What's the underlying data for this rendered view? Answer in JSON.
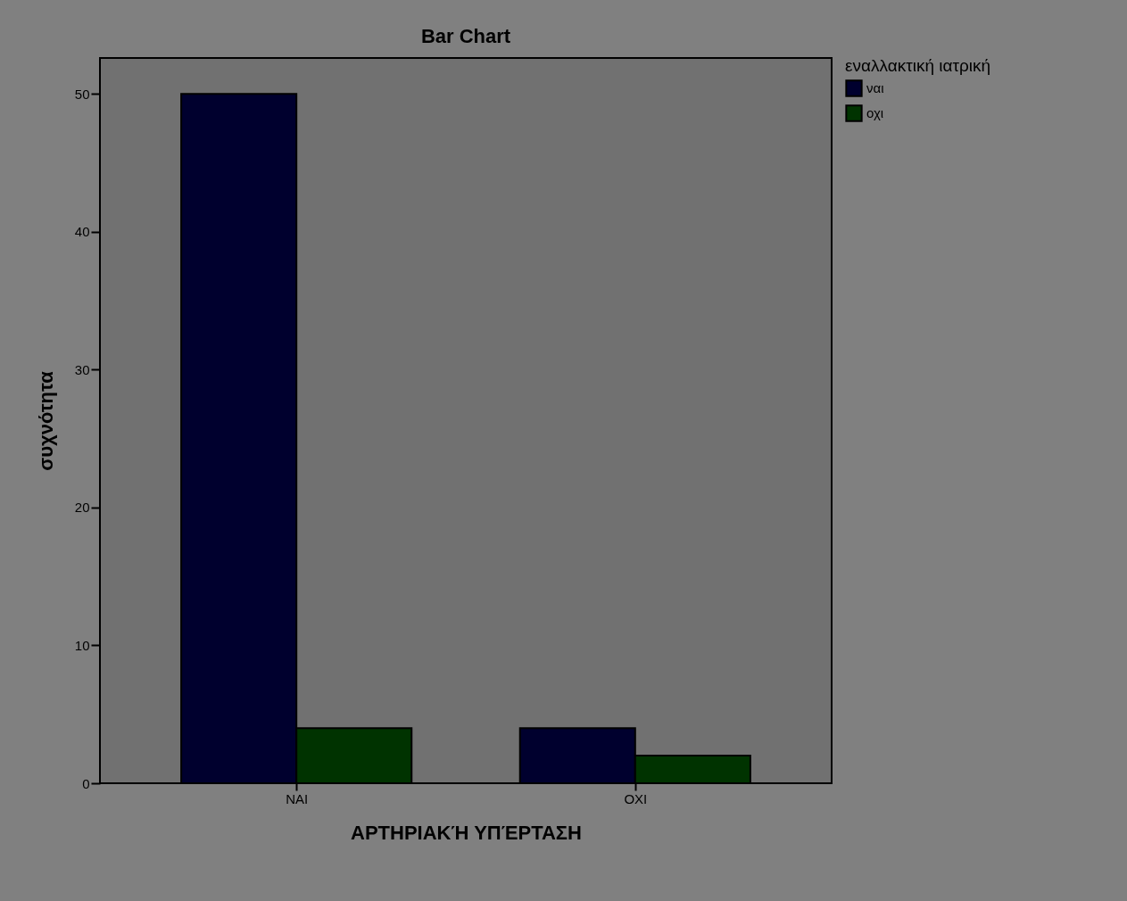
{
  "chart_data": {
    "type": "bar",
    "title": "Bar Chart",
    "xlabel": "ΑΡΤΗΡΙΑΚΉ ΥΠΈΡΤΑΣΗ",
    "ylabel": "συχνότητα",
    "legend_title": "εναλλακτική ιατρική",
    "categories": [
      "ΝΑΙ",
      "ΟΧΙ"
    ],
    "series": [
      {
        "name": "ναι",
        "color": "#00002e",
        "values": [
          50,
          4
        ]
      },
      {
        "name": "οχι",
        "color": "#003300",
        "values": [
          4,
          2
        ]
      }
    ],
    "ylim": [
      0,
      52.6
    ],
    "yticks": [
      0,
      10,
      20,
      30,
      40,
      50
    ],
    "grid": false,
    "legend": "top right"
  }
}
